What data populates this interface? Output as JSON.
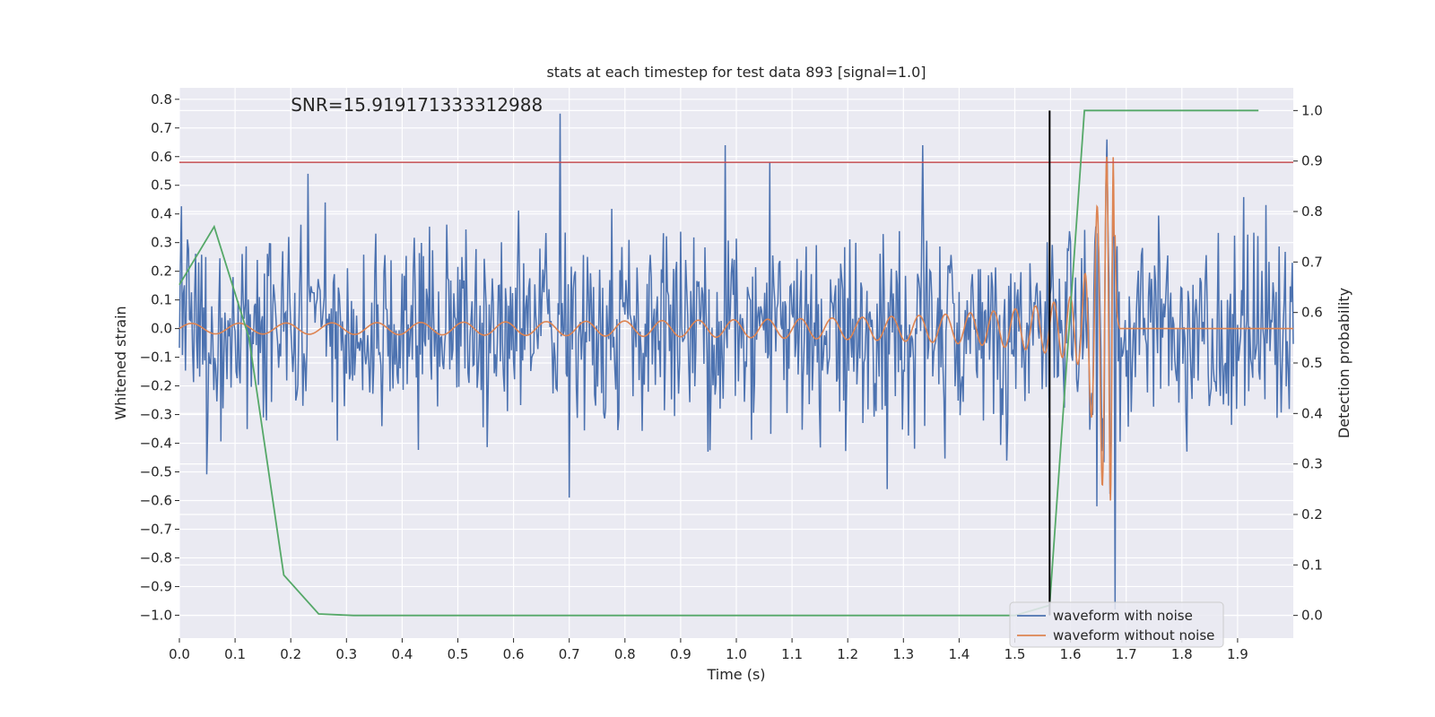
{
  "chart_data": {
    "type": "line",
    "title": "stats at each timestep for test data 893 [signal=1.0]",
    "xlabel": "Time (s)",
    "ylabel": "Whitened strain",
    "y2label": "Detection probability",
    "annotation": "SNR=15.919171333312988",
    "xlim": [
      0.0,
      2.0
    ],
    "ylim": [
      -1.08,
      0.84
    ],
    "y2lim": [
      -0.045,
      1.045
    ],
    "xticks": [
      0.0,
      0.1,
      0.2,
      0.3,
      0.4,
      0.5,
      0.6,
      0.7,
      0.8,
      0.9,
      1.0,
      1.1,
      1.2,
      1.3,
      1.4,
      1.5,
      1.6,
      1.7,
      1.8,
      1.9
    ],
    "xtick_labels": [
      "0.0",
      "0.1",
      "0.2",
      "0.3",
      "0.4",
      "0.5",
      "0.6",
      "0.7",
      "0.8",
      "0.9",
      "1.0",
      "1.1",
      "1.2",
      "1.3",
      "1.4",
      "1.5",
      "1.6",
      "1.7",
      "1.8",
      "1.9"
    ],
    "yticks": [
      0.8,
      0.7,
      0.6,
      0.5,
      0.4,
      0.3,
      0.2,
      0.1,
      0.0,
      -0.1,
      -0.2,
      -0.3,
      -0.4,
      -0.5,
      -0.6,
      -0.7,
      -0.8,
      -0.9,
      -1.0
    ],
    "ytick_labels": [
      "0.8",
      "0.7",
      "0.6",
      "0.5",
      "0.4",
      "0.3",
      "0.2",
      "0.1",
      "0.0",
      "−0.1",
      "−0.2",
      "−0.3",
      "−0.4",
      "−0.5",
      "−0.6",
      "−0.7",
      "−0.8",
      "−0.9",
      "−1.0"
    ],
    "y2ticks": [
      1.0,
      0.9,
      0.8,
      0.7,
      0.6,
      0.5,
      0.4,
      0.3,
      0.2,
      0.1,
      0.0
    ],
    "y2tick_labels": [
      "1.0",
      "0.9",
      "0.8",
      "0.7",
      "0.6",
      "0.5",
      "0.4",
      "0.3",
      "0.2",
      "0.1",
      "0.0"
    ],
    "grid": true,
    "legend_position": "lower-right",
    "series": [
      {
        "name": "waveform with noise",
        "axis": "left",
        "color": "#4c72b0",
        "description_kind": "noisy strain, ~0.17 rms, range about -1.0 to 0.75",
        "x_range": [
          0.0,
          2.0
        ],
        "peaks": [
          {
            "x": 0.683,
            "y": 0.75
          },
          {
            "x": 0.98,
            "y": 0.64
          },
          {
            "x": 1.06,
            "y": 0.58
          },
          {
            "x": 1.335,
            "y": 0.64
          },
          {
            "x": 1.665,
            "y": 0.66
          },
          {
            "x": 1.68,
            "y": -0.98
          },
          {
            "x": 0.23,
            "y": 0.54
          },
          {
            "x": 0.7,
            "y": -0.59
          },
          {
            "x": 1.27,
            "y": -0.56
          },
          {
            "x": 1.648,
            "y": -0.62
          }
        ]
      },
      {
        "name": "waveform without noise",
        "axis": "left",
        "color": "#dd8452",
        "description_kind": "chirp signal, amplitude growing to merger at ~1.68 s, then flat at 0",
        "merger_time": 1.68,
        "peak_amplitude": 0.6
      },
      {
        "axis": "right",
        "color": "#55a868",
        "x": [
          0.0,
          0.0625,
          0.125,
          0.1875,
          0.25,
          0.3125,
          0.5,
          0.75,
          1.0,
          1.25,
          1.5,
          1.5625,
          1.625,
          1.6875,
          1.75,
          1.8125,
          1.875,
          1.9375
        ],
        "values": [
          0.655,
          0.77,
          0.55,
          0.08,
          0.003,
          0.0,
          0.0,
          0.0,
          0.0,
          0.0,
          0.0,
          0.02,
          1.0,
          1.0,
          1.0,
          1.0,
          1.0,
          1.0
        ]
      }
    ],
    "hlines": [
      {
        "axis": "left",
        "y": 0.58,
        "color": "#c44e52"
      }
    ],
    "vlines": [
      {
        "x": 1.5625,
        "y2_from": 0.0,
        "y2_to": 1.0,
        "color": "#000000"
      }
    ]
  }
}
